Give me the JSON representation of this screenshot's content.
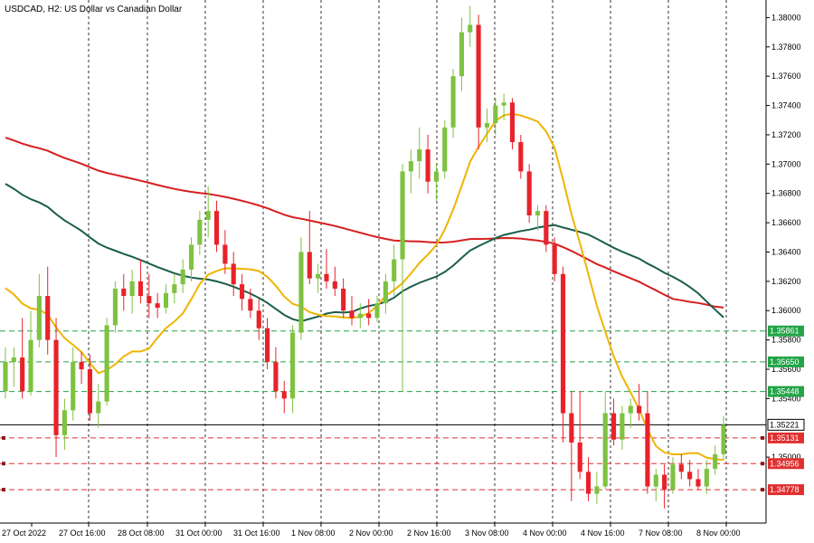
{
  "chart_data": {
    "type": "candlestick",
    "title": "USDCAD, H2:  US Dollar vs Canadian Dollar",
    "x_ticks": [
      "27 Oct 2022",
      "27 Oct 16:00",
      "28 Oct 08:00",
      "31 Oct 00:00",
      "31 Oct 16:00",
      "1 Nov 08:00",
      "2 Nov 00:00",
      "2 Nov 16:00",
      "3 Nov 08:00",
      "4 Nov 00:00",
      "4 Nov 16:00",
      "7 Nov 08:00",
      "8 Nov 00:00"
    ],
    "y_ticks": [
      "1.38000",
      "1.37800",
      "1.37600",
      "1.37400",
      "1.37200",
      "1.37000",
      "1.36800",
      "1.36600",
      "1.36400",
      "1.36200",
      "1.36000",
      "1.35800",
      "1.35600",
      "1.35400",
      "1.35000"
    ],
    "ylim": [
      1.3455,
      1.3812
    ],
    "current_price": "1.35221",
    "levels": [
      {
        "value": "1.35861",
        "kind": "support-green",
        "color": "#22a447"
      },
      {
        "value": "1.35650",
        "kind": "support-green",
        "color": "#22a447"
      },
      {
        "value": "1.35448",
        "kind": "support-green",
        "color": "#22a447"
      },
      {
        "value": "1.35131",
        "kind": "resistance-red",
        "color": "#e03030"
      },
      {
        "value": "1.34956",
        "kind": "resistance-red",
        "color": "#e03030"
      },
      {
        "value": "1.34778",
        "kind": "resistance-red",
        "color": "#e03030"
      }
    ],
    "colors": {
      "bull": "#7ec242",
      "bear": "#e8222a",
      "ma_slow": "#d71f20",
      "ma_mid": "#1a5e48",
      "ma_fast": "#f0b400",
      "grid": "#000000"
    },
    "candles": [
      {
        "o": 1.3545,
        "h": 1.3575,
        "l": 1.354,
        "c": 1.3565
      },
      {
        "o": 1.3565,
        "h": 1.3575,
        "l": 1.3548,
        "c": 1.3568
      },
      {
        "o": 1.3568,
        "h": 1.3595,
        "l": 1.354,
        "c": 1.3545
      },
      {
        "o": 1.3545,
        "h": 1.36,
        "l": 1.3542,
        "c": 1.358
      },
      {
        "o": 1.358,
        "h": 1.3625,
        "l": 1.3575,
        "c": 1.361
      },
      {
        "o": 1.361,
        "h": 1.363,
        "l": 1.357,
        "c": 1.358
      },
      {
        "o": 1.358,
        "h": 1.3595,
        "l": 1.35,
        "c": 1.3515
      },
      {
        "o": 1.3515,
        "h": 1.354,
        "l": 1.3505,
        "c": 1.3532
      },
      {
        "o": 1.3532,
        "h": 1.3575,
        "l": 1.3525,
        "c": 1.3565
      },
      {
        "o": 1.3565,
        "h": 1.3572,
        "l": 1.355,
        "c": 1.356
      },
      {
        "o": 1.356,
        "h": 1.357,
        "l": 1.3525,
        "c": 1.353
      },
      {
        "o": 1.353,
        "h": 1.355,
        "l": 1.352,
        "c": 1.3538
      },
      {
        "o": 1.3538,
        "h": 1.3595,
        "l": 1.3535,
        "c": 1.359
      },
      {
        "o": 1.359,
        "h": 1.362,
        "l": 1.3585,
        "c": 1.3615
      },
      {
        "o": 1.3615,
        "h": 1.3625,
        "l": 1.36,
        "c": 1.361
      },
      {
        "o": 1.361,
        "h": 1.3628,
        "l": 1.3598,
        "c": 1.362
      },
      {
        "o": 1.362,
        "h": 1.3635,
        "l": 1.3605,
        "c": 1.361
      },
      {
        "o": 1.361,
        "h": 1.3625,
        "l": 1.3595,
        "c": 1.3605
      },
      {
        "o": 1.3605,
        "h": 1.3612,
        "l": 1.3595,
        "c": 1.3602
      },
      {
        "o": 1.3602,
        "h": 1.3618,
        "l": 1.3598,
        "c": 1.3612
      },
      {
        "o": 1.3612,
        "h": 1.3625,
        "l": 1.3605,
        "c": 1.3618
      },
      {
        "o": 1.3618,
        "h": 1.3635,
        "l": 1.3612,
        "c": 1.3628
      },
      {
        "o": 1.3628,
        "h": 1.365,
        "l": 1.362,
        "c": 1.3645
      },
      {
        "o": 1.3645,
        "h": 1.3668,
        "l": 1.3638,
        "c": 1.3662
      },
      {
        "o": 1.3662,
        "h": 1.3685,
        "l": 1.365,
        "c": 1.3668
      },
      {
        "o": 1.3668,
        "h": 1.3675,
        "l": 1.364,
        "c": 1.3645
      },
      {
        "o": 1.3645,
        "h": 1.3655,
        "l": 1.3625,
        "c": 1.3632
      },
      {
        "o": 1.3632,
        "h": 1.364,
        "l": 1.361,
        "c": 1.3618
      },
      {
        "o": 1.3618,
        "h": 1.3625,
        "l": 1.36,
        "c": 1.3608
      },
      {
        "o": 1.3608,
        "h": 1.3615,
        "l": 1.3595,
        "c": 1.36
      },
      {
        "o": 1.36,
        "h": 1.3608,
        "l": 1.358,
        "c": 1.3588
      },
      {
        "o": 1.3588,
        "h": 1.3595,
        "l": 1.356,
        "c": 1.3565
      },
      {
        "o": 1.3565,
        "h": 1.3575,
        "l": 1.354,
        "c": 1.3545
      },
      {
        "o": 1.3545,
        "h": 1.3552,
        "l": 1.353,
        "c": 1.354
      },
      {
        "o": 1.354,
        "h": 1.359,
        "l": 1.353,
        "c": 1.3585
      },
      {
        "o": 1.3585,
        "h": 1.365,
        "l": 1.358,
        "c": 1.364
      },
      {
        "o": 1.364,
        "h": 1.3668,
        "l": 1.3618,
        "c": 1.3622
      },
      {
        "o": 1.3622,
        "h": 1.3632,
        "l": 1.3612,
        "c": 1.3625
      },
      {
        "o": 1.3625,
        "h": 1.3642,
        "l": 1.3615,
        "c": 1.362
      },
      {
        "o": 1.362,
        "h": 1.363,
        "l": 1.361,
        "c": 1.3615
      },
      {
        "o": 1.3615,
        "h": 1.3622,
        "l": 1.3595,
        "c": 1.36
      },
      {
        "o": 1.36,
        "h": 1.361,
        "l": 1.359,
        "c": 1.3595
      },
      {
        "o": 1.3595,
        "h": 1.3605,
        "l": 1.3588,
        "c": 1.3598
      },
      {
        "o": 1.3598,
        "h": 1.3608,
        "l": 1.359,
        "c": 1.3595
      },
      {
        "o": 1.3595,
        "h": 1.361,
        "l": 1.3592,
        "c": 1.3605
      },
      {
        "o": 1.3605,
        "h": 1.3625,
        "l": 1.3598,
        "c": 1.362
      },
      {
        "o": 1.362,
        "h": 1.3645,
        "l": 1.361,
        "c": 1.3635
      },
      {
        "o": 1.3635,
        "h": 1.37,
        "l": 1.3545,
        "c": 1.3695
      },
      {
        "o": 1.3695,
        "h": 1.371,
        "l": 1.368,
        "c": 1.3702
      },
      {
        "o": 1.3702,
        "h": 1.3725,
        "l": 1.369,
        "c": 1.371
      },
      {
        "o": 1.371,
        "h": 1.372,
        "l": 1.368,
        "c": 1.3688
      },
      {
        "o": 1.3688,
        "h": 1.37,
        "l": 1.3675,
        "c": 1.3695
      },
      {
        "o": 1.3695,
        "h": 1.373,
        "l": 1.369,
        "c": 1.3725
      },
      {
        "o": 1.3725,
        "h": 1.3765,
        "l": 1.3718,
        "c": 1.376
      },
      {
        "o": 1.376,
        "h": 1.38,
        "l": 1.375,
        "c": 1.379
      },
      {
        "o": 1.379,
        "h": 1.3808,
        "l": 1.378,
        "c": 1.3795
      },
      {
        "o": 1.3795,
        "h": 1.3802,
        "l": 1.371,
        "c": 1.3725
      },
      {
        "o": 1.3725,
        "h": 1.3738,
        "l": 1.3715,
        "c": 1.3728
      },
      {
        "o": 1.3728,
        "h": 1.3745,
        "l": 1.372,
        "c": 1.374
      },
      {
        "o": 1.374,
        "h": 1.3748,
        "l": 1.373,
        "c": 1.3742
      },
      {
        "o": 1.3742,
        "h": 1.3745,
        "l": 1.371,
        "c": 1.3715
      },
      {
        "o": 1.3715,
        "h": 1.372,
        "l": 1.369,
        "c": 1.3695
      },
      {
        "o": 1.3695,
        "h": 1.37,
        "l": 1.366,
        "c": 1.3665
      },
      {
        "o": 1.3665,
        "h": 1.3672,
        "l": 1.3655,
        "c": 1.3668
      },
      {
        "o": 1.3668,
        "h": 1.3672,
        "l": 1.364,
        "c": 1.3645
      },
      {
        "o": 1.3645,
        "h": 1.365,
        "l": 1.362,
        "c": 1.3625
      },
      {
        "o": 1.3625,
        "h": 1.363,
        "l": 1.351,
        "c": 1.353
      },
      {
        "o": 1.353,
        "h": 1.3545,
        "l": 1.347,
        "c": 1.351
      },
      {
        "o": 1.351,
        "h": 1.3545,
        "l": 1.3485,
        "c": 1.349
      },
      {
        "o": 1.349,
        "h": 1.35,
        "l": 1.347,
        "c": 1.3475
      },
      {
        "o": 1.3475,
        "h": 1.349,
        "l": 1.3468,
        "c": 1.348
      },
      {
        "o": 1.348,
        "h": 1.3545,
        "l": 1.3478,
        "c": 1.353
      },
      {
        "o": 1.353,
        "h": 1.354,
        "l": 1.3508,
        "c": 1.3512
      },
      {
        "o": 1.3512,
        "h": 1.3535,
        "l": 1.3505,
        "c": 1.353
      },
      {
        "o": 1.353,
        "h": 1.354,
        "l": 1.352,
        "c": 1.3535
      },
      {
        "o": 1.3535,
        "h": 1.355,
        "l": 1.3525,
        "c": 1.353
      },
      {
        "o": 1.353,
        "h": 1.3545,
        "l": 1.3475,
        "c": 1.348
      },
      {
        "o": 1.348,
        "h": 1.3492,
        "l": 1.347,
        "c": 1.3488
      },
      {
        "o": 1.3488,
        "h": 1.3495,
        "l": 1.3465,
        "c": 1.3478
      },
      {
        "o": 1.3478,
        "h": 1.35,
        "l": 1.3475,
        "c": 1.3495
      },
      {
        "o": 1.3495,
        "h": 1.3502,
        "l": 1.3485,
        "c": 1.349
      },
      {
        "o": 1.349,
        "h": 1.3498,
        "l": 1.348,
        "c": 1.3485
      },
      {
        "o": 1.3485,
        "h": 1.3492,
        "l": 1.3478,
        "c": 1.348
      },
      {
        "o": 1.348,
        "h": 1.3498,
        "l": 1.3475,
        "c": 1.3492
      },
      {
        "o": 1.3492,
        "h": 1.3508,
        "l": 1.3488,
        "c": 1.3502
      },
      {
        "o": 1.3502,
        "h": 1.3528,
        "l": 1.3498,
        "c": 1.3522
      }
    ]
  }
}
